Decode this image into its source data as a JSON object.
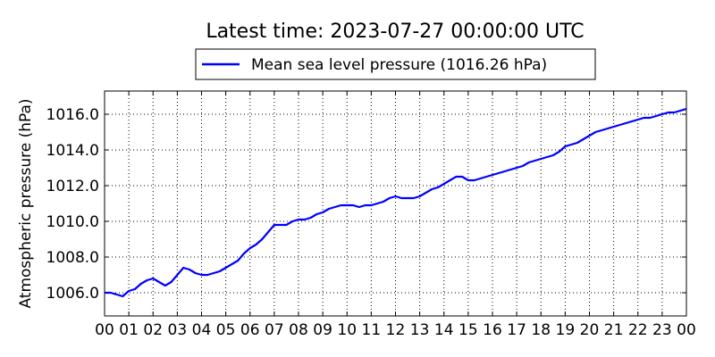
{
  "chart_data": {
    "type": "line",
    "title": "Latest time: 2023-07-27 00:00:00 UTC",
    "xlabel": "",
    "ylabel": "Atmospheric pressure (hPa)",
    "xlim": [
      0,
      24
    ],
    "ylim": [
      1004.7,
      1017.3
    ],
    "x_tick_labels": [
      "00",
      "01",
      "02",
      "03",
      "04",
      "05",
      "06",
      "07",
      "08",
      "09",
      "10",
      "11",
      "12",
      "13",
      "14",
      "15",
      "16",
      "17",
      "18",
      "19",
      "20",
      "21",
      "22",
      "23",
      "00"
    ],
    "y_ticks": [
      1006.0,
      1008.0,
      1010.0,
      1012.0,
      1014.0,
      1016.0
    ],
    "y_tick_labels": [
      "1006.0",
      "1008.0",
      "1010.0",
      "1012.0",
      "1014.0",
      "1016.0"
    ],
    "grid": true,
    "legend_position": "top-center",
    "series": [
      {
        "name": "Mean sea level pressure (1016.26 hPa)",
        "color": "#0000ff",
        "x": [
          0,
          0.25,
          0.5,
          0.75,
          1.0,
          1.25,
          1.5,
          1.75,
          2.0,
          2.25,
          2.5,
          2.75,
          3.0,
          3.25,
          3.5,
          3.75,
          4.0,
          4.25,
          4.5,
          4.75,
          5.0,
          5.25,
          5.5,
          5.75,
          6.0,
          6.25,
          6.5,
          6.75,
          7.0,
          7.25,
          7.5,
          7.75,
          8.0,
          8.25,
          8.5,
          8.75,
          9.0,
          9.25,
          9.5,
          9.75,
          10.0,
          10.25,
          10.5,
          10.75,
          11.0,
          11.25,
          11.5,
          11.75,
          12.0,
          12.25,
          12.5,
          12.75,
          13.0,
          13.25,
          13.5,
          13.75,
          14.0,
          14.25,
          14.5,
          14.75,
          15.0,
          15.25,
          15.5,
          15.75,
          16.0,
          16.25,
          16.5,
          16.75,
          17.0,
          17.25,
          17.5,
          17.75,
          18.0,
          18.25,
          18.5,
          18.75,
          19.0,
          19.25,
          19.5,
          19.75,
          20.0,
          20.25,
          20.5,
          20.75,
          21.0,
          21.25,
          21.5,
          21.75,
          22.0,
          22.25,
          22.5,
          22.75,
          23.0,
          23.25,
          23.5,
          23.75,
          24.0
        ],
        "y": [
          1006.0,
          1006.0,
          1005.9,
          1005.8,
          1006.1,
          1006.2,
          1006.5,
          1006.7,
          1006.8,
          1006.6,
          1006.4,
          1006.6,
          1007.0,
          1007.4,
          1007.3,
          1007.1,
          1007.0,
          1007.0,
          1007.1,
          1007.2,
          1007.4,
          1007.6,
          1007.8,
          1008.2,
          1008.5,
          1008.7,
          1009.0,
          1009.4,
          1009.8,
          1009.8,
          1009.8,
          1010.0,
          1010.1,
          1010.1,
          1010.2,
          1010.4,
          1010.5,
          1010.7,
          1010.8,
          1010.9,
          1010.9,
          1010.9,
          1010.8,
          1010.9,
          1010.9,
          1011.0,
          1011.1,
          1011.3,
          1011.4,
          1011.3,
          1011.3,
          1011.3,
          1011.4,
          1011.6,
          1011.8,
          1011.9,
          1012.1,
          1012.3,
          1012.5,
          1012.5,
          1012.3,
          1012.3,
          1012.4,
          1012.5,
          1012.6,
          1012.7,
          1012.8,
          1012.9,
          1013.0,
          1013.1,
          1013.3,
          1013.4,
          1013.5,
          1013.6,
          1013.7,
          1013.9,
          1014.2,
          1014.3,
          1014.4,
          1014.6,
          1014.8,
          1015.0,
          1015.1,
          1015.2,
          1015.3,
          1015.4,
          1015.5,
          1015.6,
          1015.7,
          1015.8,
          1015.8,
          1015.9,
          1016.0,
          1016.1,
          1016.1,
          1016.2,
          1016.3
        ]
      }
    ]
  }
}
